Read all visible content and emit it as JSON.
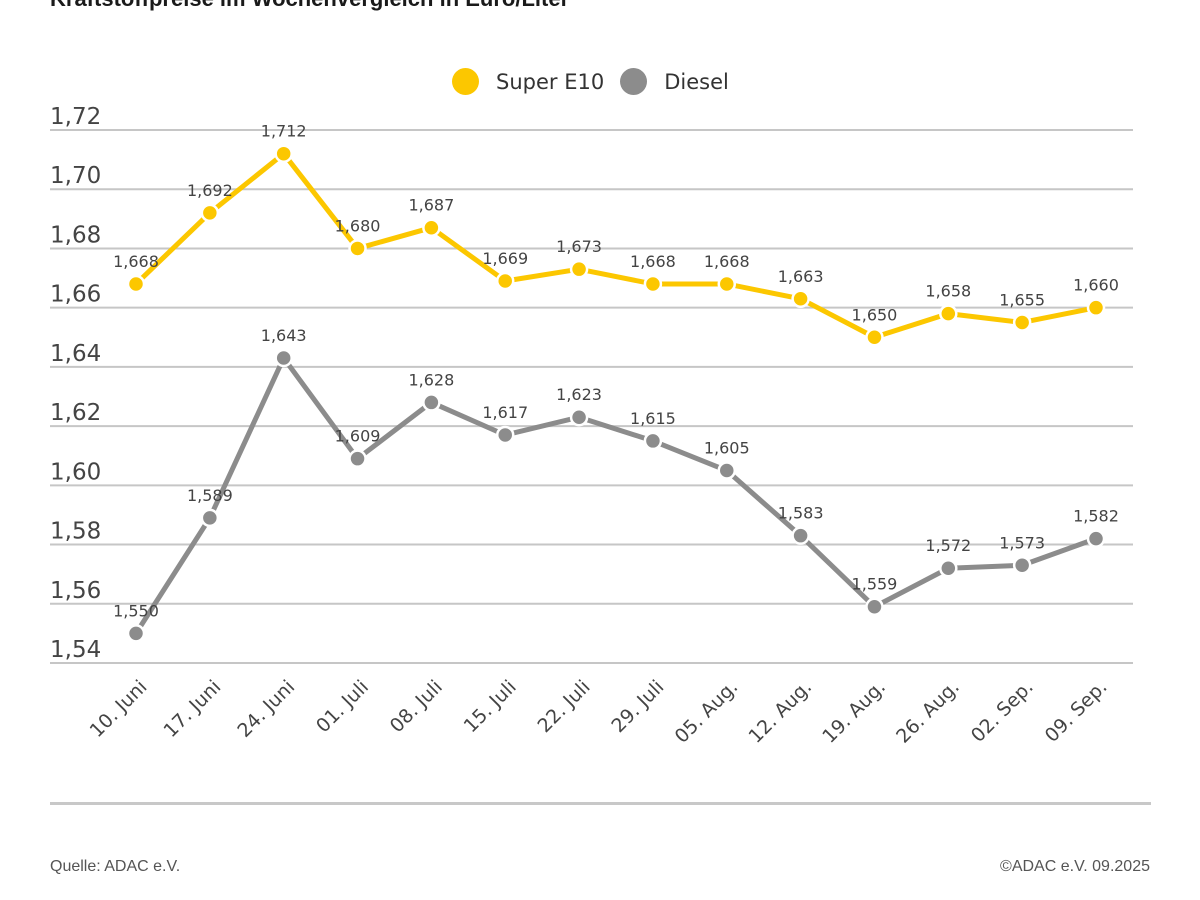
{
  "chart_data": {
    "type": "line",
    "title": "Kraftstoffpreise im Wochenvergleich in Euro/Liter",
    "xlabel": "",
    "ylabel": "",
    "ylim": [
      1.54,
      1.72
    ],
    "yticks": [
      1.72,
      1.7,
      1.68,
      1.66,
      1.64,
      1.62,
      1.6,
      1.58,
      1.56,
      1.54
    ],
    "ytick_labels": [
      "1,72",
      "1,70",
      "1,68",
      "1,66",
      "1,64",
      "1,62",
      "1,60",
      "1,58",
      "1,56",
      "1,54"
    ],
    "grid": true,
    "legend_position": "top-center",
    "categories": [
      "10. Juni",
      "17. Juni",
      "24. Juni",
      "01. Juli",
      "08. Juli",
      "15. Juli",
      "22. Juli",
      "29. Juli",
      "05. Aug.",
      "12. Aug.",
      "19. Aug.",
      "26. Aug.",
      "02. Sep.",
      "09. Sep."
    ],
    "series": [
      {
        "name": "Super E10",
        "color": "#fcc700",
        "values": [
          1.668,
          1.692,
          1.712,
          1.68,
          1.687,
          1.669,
          1.673,
          1.668,
          1.668,
          1.663,
          1.65,
          1.658,
          1.655,
          1.66
        ],
        "labels": [
          "1,668",
          "1,692",
          "1,712",
          "1,680",
          "1,687",
          "1,669",
          "1,673",
          "1,668",
          "1,668",
          "1,663",
          "1,650",
          "1,658",
          "1,655",
          "1,660"
        ]
      },
      {
        "name": "Diesel",
        "color": "#8c8c8c",
        "values": [
          1.55,
          1.589,
          1.643,
          1.609,
          1.628,
          1.617,
          1.623,
          1.615,
          1.605,
          1.583,
          1.559,
          1.572,
          1.573,
          1.582
        ],
        "labels": [
          "1,550",
          "1,589",
          "1,643",
          "1,609",
          "1,628",
          "1,617",
          "1,623",
          "1,615",
          "1,605",
          "1,583",
          "1,559",
          "1,572",
          "1,573",
          "1,582"
        ]
      }
    ]
  },
  "footer": {
    "source": "Quelle: ADAC e.V.",
    "copyright": "©ADAC e.V. 09.2025"
  }
}
